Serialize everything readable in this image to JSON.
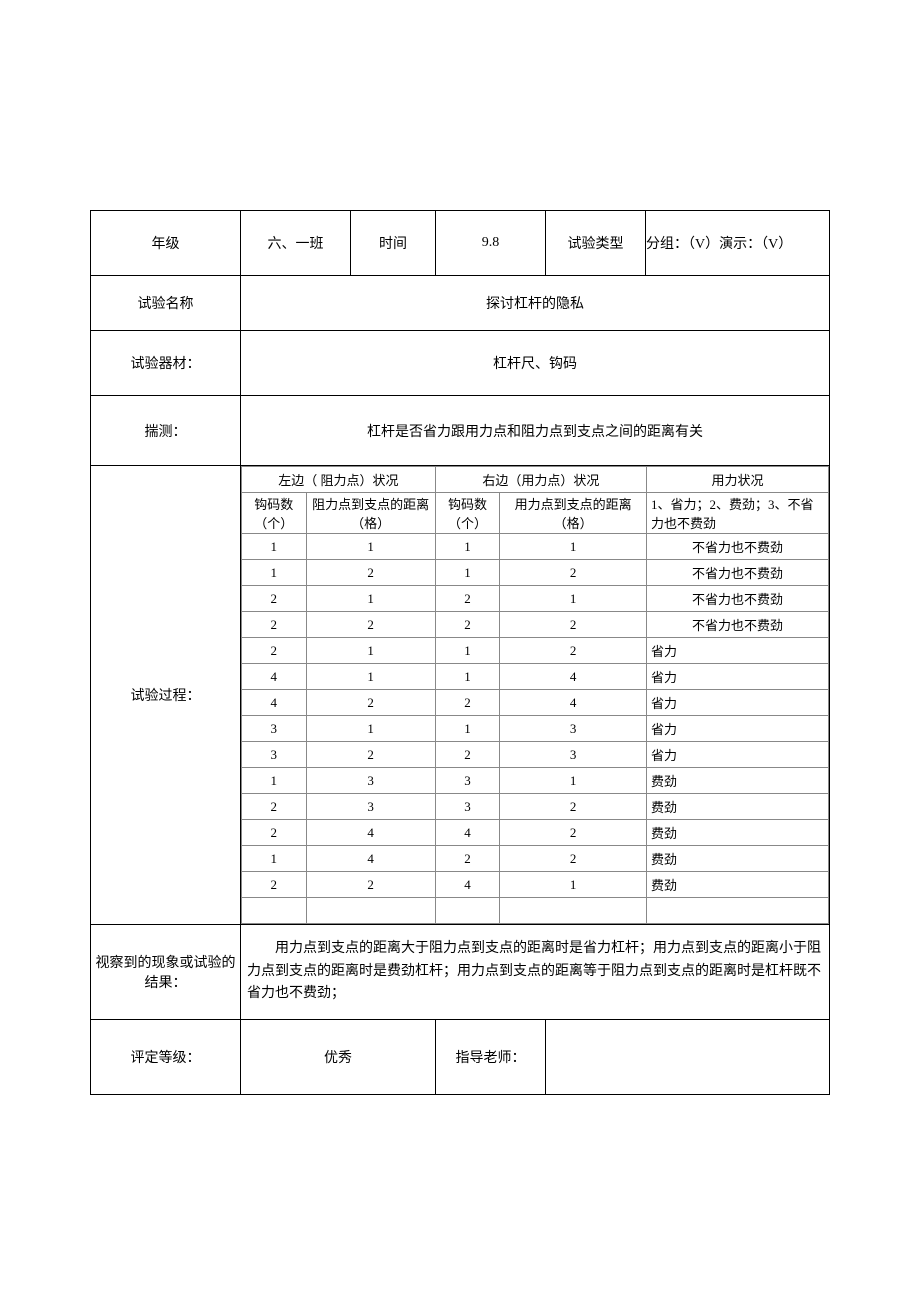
{
  "header": {
    "grade_label": "年级",
    "grade_value": "六、一班",
    "time_label": "时间",
    "time_value": "9.8",
    "exp_type_label": "试验类型",
    "exp_type_value": "分组：（V）演示：（V）",
    "name_label": "试验名称",
    "name_value": "探讨杠杆的隐私",
    "equip_label": "试验器材：",
    "equip_value": "杠杆尺、钩码",
    "guess_label": "揣测：",
    "guess_value": "杠杆是否省力跟用力点和阻力点到支点之间的距离有关"
  },
  "process": {
    "label": "试验过程：",
    "headers": {
      "left": "左边（ 阻力点）状况",
      "right": "右边（用力点）状况",
      "effort": "用力状况",
      "hook_count": "钩码数（个）",
      "resist_dist": "阻力点到支点的距离（格）",
      "hook_count2": "钩码数（个）",
      "effort_dist": "用力点到支点的距离（格）",
      "legend": "1、省力；2、费劲；3、不省力也不费劲"
    },
    "rows": [
      {
        "a": "1",
        "b": "1",
        "c": "1",
        "d": "1",
        "e": "不省力也不费劲",
        "align": "center"
      },
      {
        "a": "1",
        "b": "2",
        "c": "1",
        "d": "2",
        "e": "不省力也不费劲",
        "align": "center"
      },
      {
        "a": "2",
        "b": "1",
        "c": "2",
        "d": "1",
        "e": "不省力也不费劲",
        "align": "center"
      },
      {
        "a": "2",
        "b": "2",
        "c": "2",
        "d": "2",
        "e": "不省力也不费劲",
        "align": "center"
      },
      {
        "a": "2",
        "b": "1",
        "c": "1",
        "d": "2",
        "e": "省力",
        "align": "left"
      },
      {
        "a": "4",
        "b": "1",
        "c": "1",
        "d": "4",
        "e": "省力",
        "align": "left"
      },
      {
        "a": "4",
        "b": "2",
        "c": "2",
        "d": "4",
        "e": "省力",
        "align": "left"
      },
      {
        "a": "3",
        "b": "1",
        "c": "1",
        "d": "3",
        "e": "省力",
        "align": "left"
      },
      {
        "a": "3",
        "b": "2",
        "c": "2",
        "d": "3",
        "e": "省力",
        "align": "left"
      },
      {
        "a": "1",
        "b": "3",
        "c": "3",
        "d": "1",
        "e": "费劲",
        "align": "left"
      },
      {
        "a": "2",
        "b": "3",
        "c": "3",
        "d": "2",
        "e": "费劲",
        "align": "left"
      },
      {
        "a": "2",
        "b": "4",
        "c": "4",
        "d": "2",
        "e": "费劲",
        "align": "left"
      },
      {
        "a": "1",
        "b": "4",
        "c": "2",
        "d": "2",
        "e": "费劲",
        "align": "left"
      },
      {
        "a": "2",
        "b": "2",
        "c": "4",
        "d": "1",
        "e": "费劲",
        "align": "left"
      },
      {
        "a": "",
        "b": "",
        "c": "",
        "d": "",
        "e": "",
        "align": "left"
      }
    ]
  },
  "observation": {
    "label": "视察到的现象或试验的结果：",
    "value": "用力点到支点的距离大于阻力点到支点的距离时是省力杠杆；用力点到支点的距离小于阻力点到支点的距离时是费劲杠杆；用力点到支点的距离等于阻力点到支点的距离时是杠杆既不省力也不费劲；"
  },
  "footer": {
    "rating_label": "评定等级：",
    "rating_value": "优秀",
    "teacher_label": "指导老师：",
    "teacher_value": ""
  },
  "style": {
    "border_color": "#000000",
    "inner_border_color": "#888888",
    "background": "#ffffff",
    "font_family": "SimSun",
    "base_font_size": 14,
    "inner_font_size": 13,
    "col_widths": {
      "label": 150,
      "c1": 60,
      "c2": 120,
      "c3": 60,
      "c4": 130,
      "c5": 170
    }
  }
}
